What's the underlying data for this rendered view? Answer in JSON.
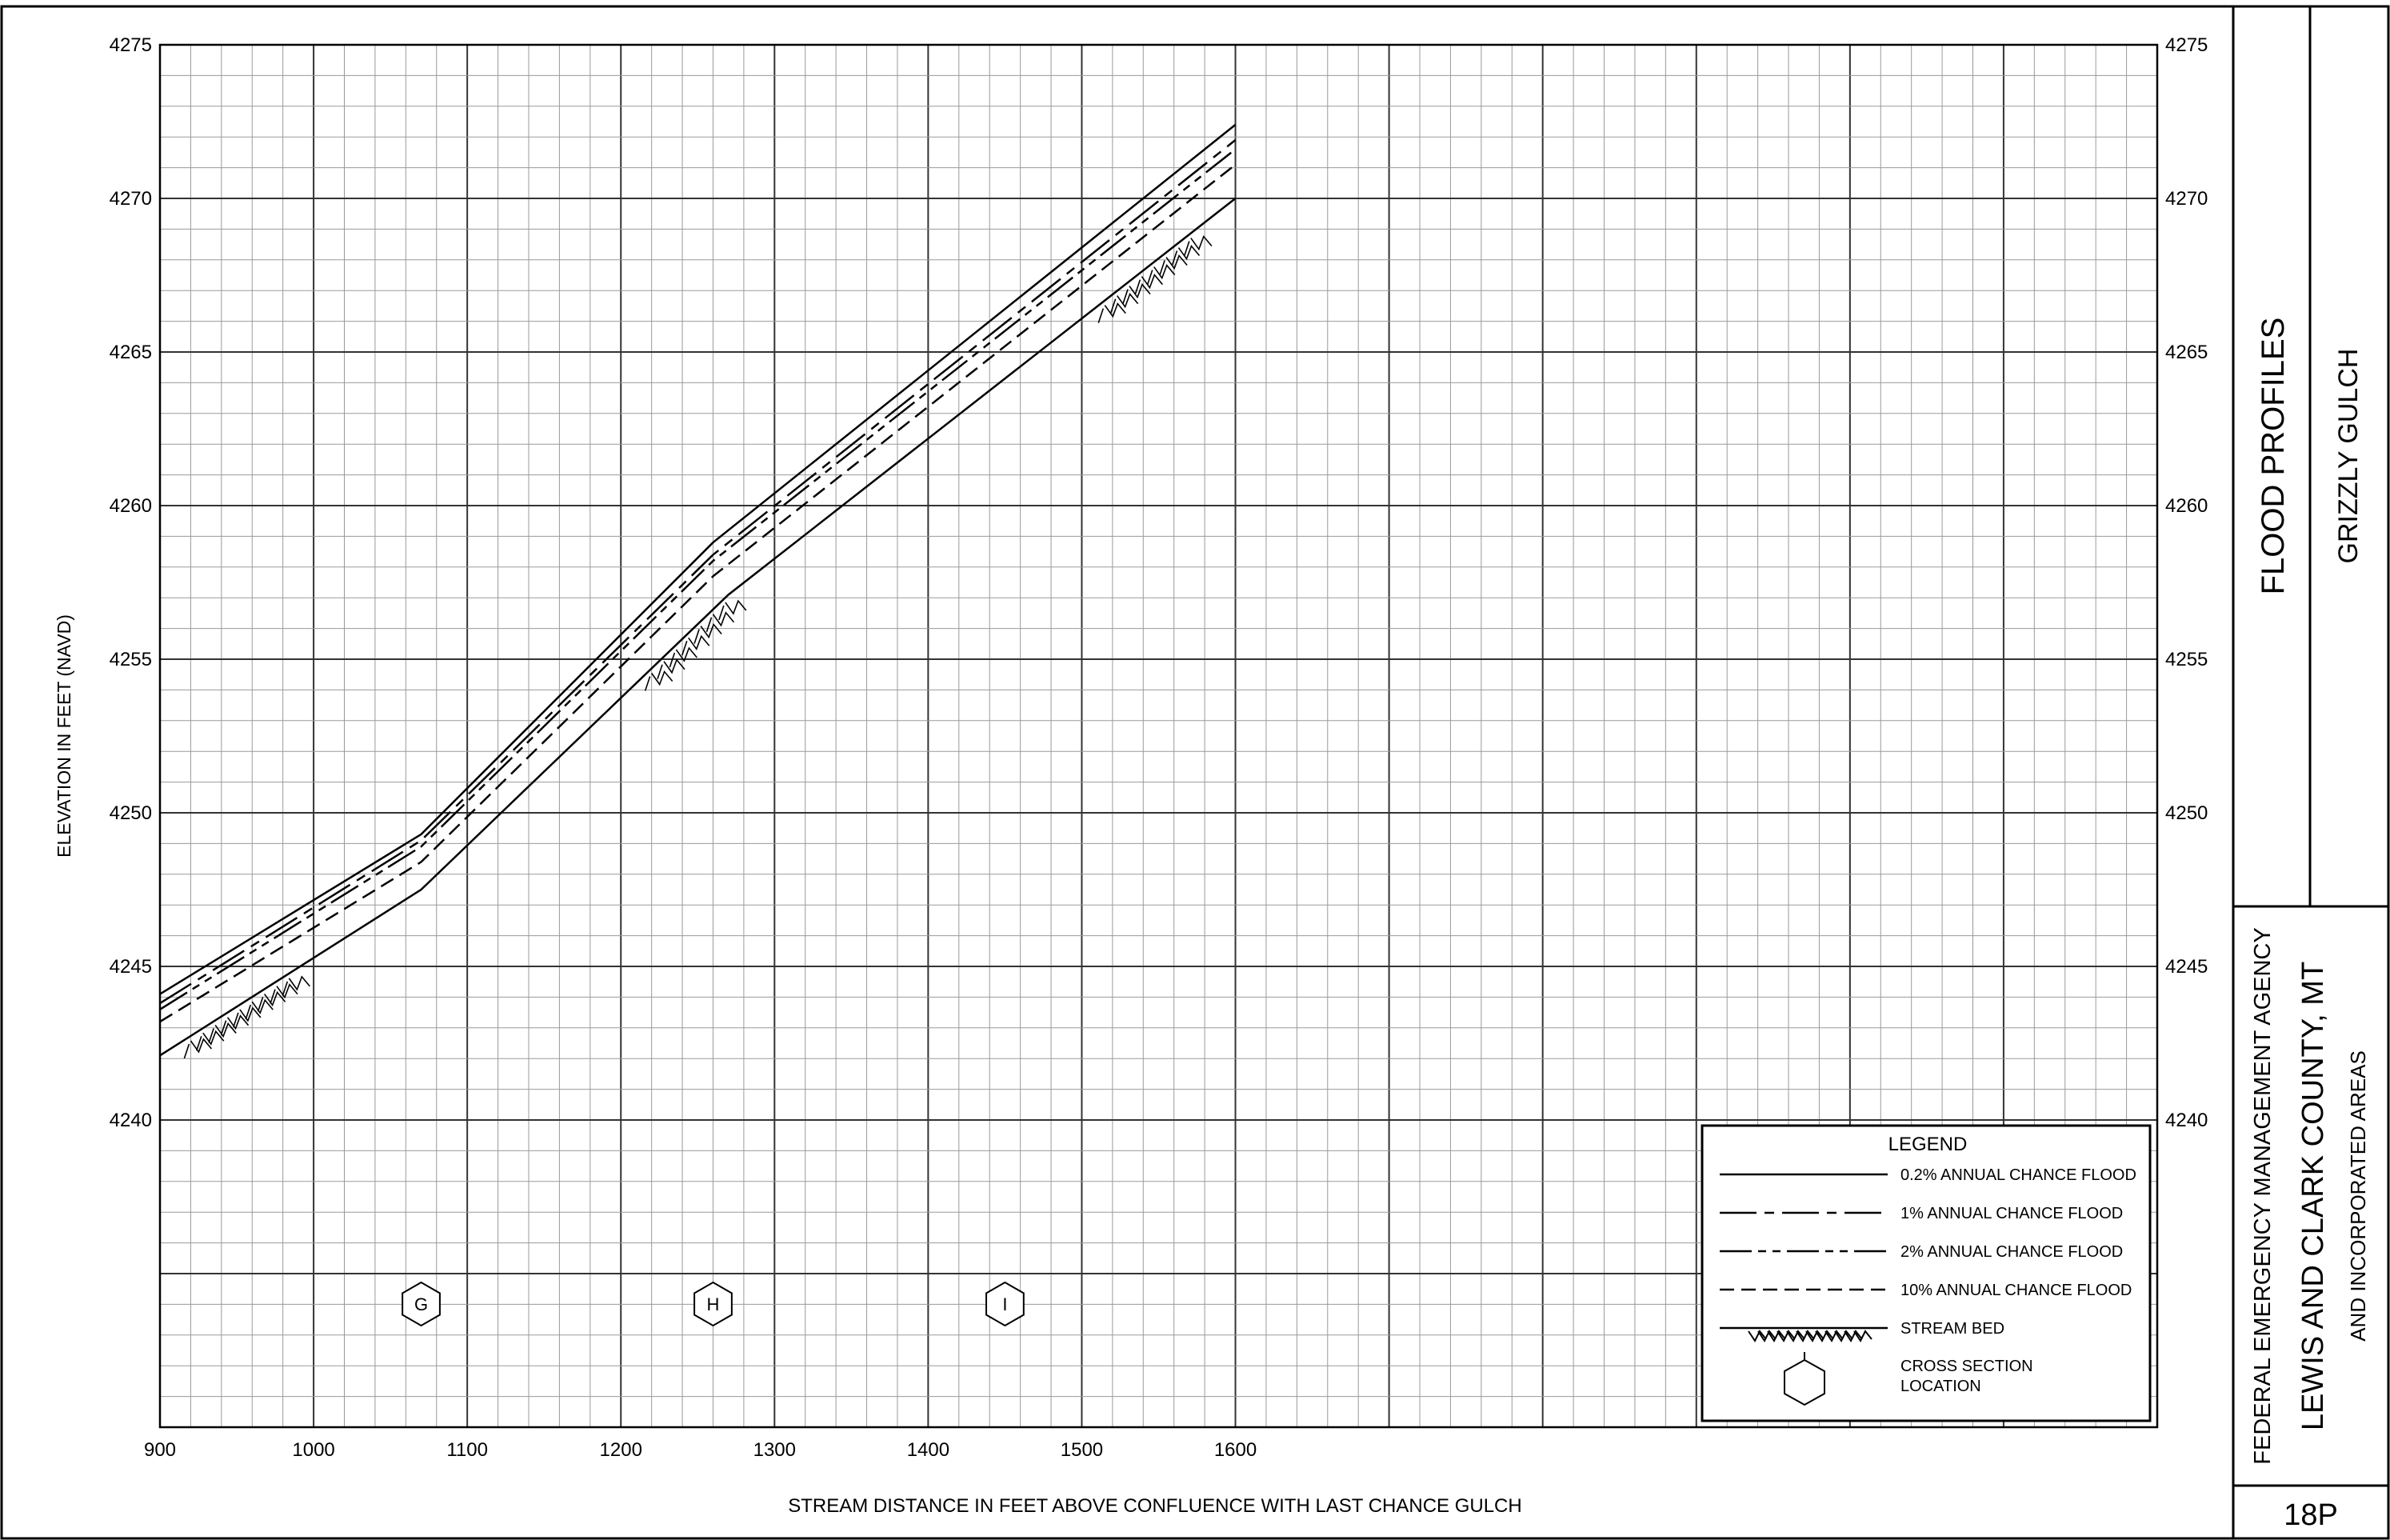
{
  "chart_data": {
    "type": "line",
    "title": "FLOOD PROFILES",
    "xlabel": "STREAM DISTANCE IN FEET ABOVE CONFLUENCE WITH LAST CHANCE GULCH",
    "ylabel": "ELEVATION IN FEET (NAVD)",
    "xlim": [
      900,
      2200
    ],
    "ylim": [
      4230,
      4275
    ],
    "x_ticks": [
      900,
      1000,
      1100,
      1200,
      1300,
      1400,
      1500,
      1600
    ],
    "y_ticks": [
      4240,
      4245,
      4250,
      4255,
      4260,
      4265,
      4270,
      4275
    ],
    "grid": true,
    "legend_position": "bottom-right",
    "series": [
      {
        "name": "0.2% ANNUAL CHANCE FLOOD",
        "style": "solid",
        "x": [
          900,
          1070,
          1260,
          1600
        ],
        "y": [
          4244.1,
          4249.3,
          4258.8,
          4272.4
        ]
      },
      {
        "name": "1% ANNUAL CHANCE FLOOD",
        "style": "dashdot",
        "x": [
          900,
          1070,
          1260,
          1600
        ],
        "y": [
          4243.8,
          4249.1,
          4258.4,
          4271.9
        ]
      },
      {
        "name": "2% ANNUAL CHANCE FLOOD",
        "style": "dashdotdot",
        "x": [
          900,
          1070,
          1260,
          1600
        ],
        "y": [
          4243.6,
          4248.9,
          4258.2,
          4271.6
        ]
      },
      {
        "name": "10% ANNUAL CHANCE FLOOD",
        "style": "dashed",
        "x": [
          900,
          1070,
          1260,
          1600
        ],
        "y": [
          4243.2,
          4248.4,
          4257.7,
          4271.1
        ]
      },
      {
        "name": "STREAM BED",
        "style": "streambed",
        "x": [
          900,
          1070,
          1270,
          1600
        ],
        "y": [
          4242.1,
          4247.5,
          4257.1,
          4270.0
        ]
      }
    ],
    "cross_sections": [
      {
        "label": "G",
        "x": 1070
      },
      {
        "label": "H",
        "x": 1260
      },
      {
        "label": "I",
        "x": 1450
      }
    ]
  },
  "legend": {
    "title": "LEGEND",
    "items": [
      {
        "label": "0.2% ANNUAL CHANCE FLOOD",
        "style": "solid"
      },
      {
        "label": "1% ANNUAL CHANCE FLOOD",
        "style": "dashdot"
      },
      {
        "label": "2% ANNUAL CHANCE FLOOD",
        "style": "dashdotdot"
      },
      {
        "label": "10% ANNUAL CHANCE FLOOD",
        "style": "dashed"
      },
      {
        "label": "STREAM BED",
        "style": "streambed"
      }
    ],
    "cross_section_label_line1": "CROSS SECTION",
    "cross_section_label_line2": "LOCATION"
  },
  "title_block": {
    "title": "FLOOD PROFILES",
    "stream": "GRIZZLY GULCH",
    "agency": "FEDERAL EMERGENCY MANAGEMENT AGENCY",
    "county": "LEWIS AND CLARK COUNTY, MT",
    "areas": "AND INCORPORATED AREAS",
    "panel": "18P"
  }
}
